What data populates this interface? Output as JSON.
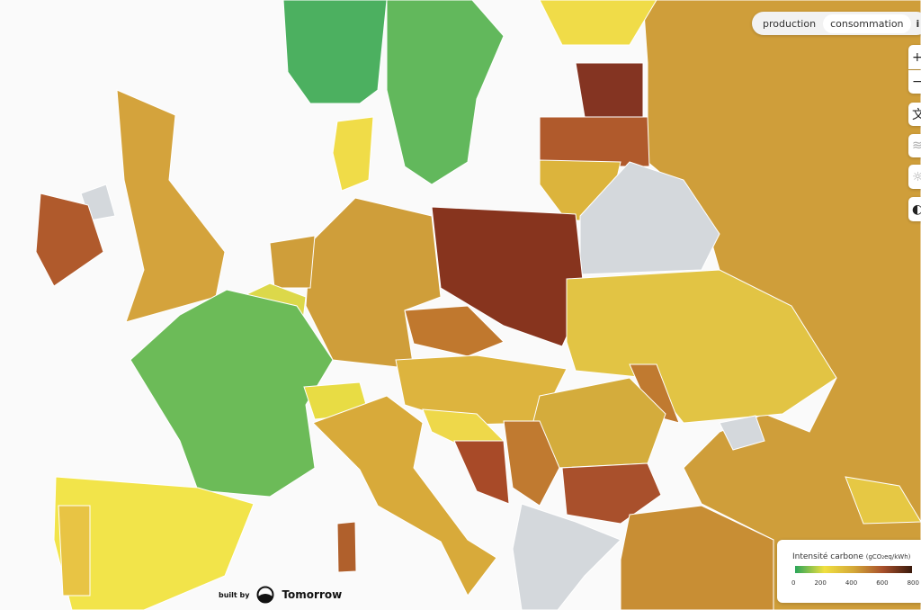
{
  "mode_toggle": {
    "production": "production",
    "consumption": "consommation",
    "info": "i",
    "active": "consommation"
  },
  "controls": [
    {
      "icon": "zoom-in-icon",
      "glyph": "+"
    },
    {
      "icon": "zoom-out-icon",
      "glyph": "−"
    },
    {
      "icon": "language-icon",
      "glyph": "文"
    },
    {
      "icon": "wind-icon",
      "glyph": "≋"
    },
    {
      "icon": "sun-icon",
      "glyph": "☼"
    },
    {
      "icon": "dark-mode-icon",
      "glyph": "◐"
    }
  ],
  "legend": {
    "title": "Intensité carbone",
    "unit": "(gCO₂eq/kWh)",
    "ticks": [
      "0",
      "200",
      "400",
      "600",
      "800"
    ],
    "colors": [
      "#2aa55a",
      "#f0e040",
      "#d4a838",
      "#a8502c",
      "#3a1a0c"
    ]
  },
  "branding": {
    "prefix": "built by",
    "name": "Tomorrow"
  }
}
